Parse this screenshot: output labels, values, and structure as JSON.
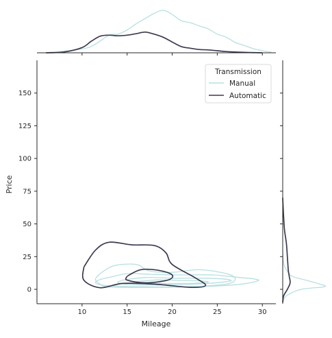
{
  "chart_data": {
    "type": "jointplot-kde",
    "xlabel": "Mileage",
    "ylabel": "Price",
    "xlim": [
      5,
      31.5
    ],
    "ylim": [
      -11,
      175
    ],
    "x_ticks": [
      10,
      15,
      20,
      25,
      30
    ],
    "y_ticks": [
      0,
      25,
      50,
      75,
      100,
      125,
      150
    ],
    "grid": false,
    "legend": {
      "title": "Transmission",
      "placement": "top-right"
    },
    "colors": {
      "Manual": "#b7dfe0",
      "Automatic": "#3a3850"
    },
    "series": [
      {
        "name": "Manual",
        "contours": [
          [
            [
              12,
              12
            ],
            [
              13.5,
              18
            ],
            [
              16,
              19
            ],
            [
              17.5,
              14
            ],
            [
              20,
              13
            ],
            [
              23,
              15
            ],
            [
              26,
              12
            ],
            [
              27,
              8
            ],
            [
              26,
              4
            ],
            [
              22,
              2
            ],
            [
              18,
              1.5
            ],
            [
              13,
              1.8
            ],
            [
              11.8,
              5
            ],
            [
              11.5,
              8
            ],
            [
              12,
              12
            ]
          ],
          [
            [
              13,
              9
            ],
            [
              15,
              12
            ],
            [
              17.5,
              11.5
            ],
            [
              21,
              11
            ],
            [
              24.5,
              11
            ],
            [
              27.5,
              9
            ],
            [
              29,
              8
            ],
            [
              29.5,
              6.5
            ],
            [
              27,
              3.5
            ],
            [
              22,
              2
            ],
            [
              16,
              2
            ],
            [
              12.5,
              3
            ],
            [
              11.5,
              5
            ],
            [
              12,
              7.5
            ],
            [
              13,
              9
            ]
          ],
          [
            [
              14.5,
              7
            ],
            [
              17,
              9
            ],
            [
              20,
              8.5
            ],
            [
              23,
              8.5
            ],
            [
              25.5,
              8
            ],
            [
              26.5,
              6.5
            ],
            [
              24,
              4.5
            ],
            [
              20,
              3.5
            ],
            [
              16,
              3.5
            ],
            [
              14,
              5
            ],
            [
              14.5,
              7
            ]
          ],
          [
            [
              16,
              6
            ],
            [
              18.5,
              7.2
            ],
            [
              21,
              6.8
            ],
            [
              23,
              6.5
            ],
            [
              24,
              5.5
            ],
            [
              22,
              4.5
            ],
            [
              19,
              4.5
            ],
            [
              16.5,
              4.8
            ],
            [
              16,
              6
            ]
          ]
        ],
        "marginal_x": [
          [
            6,
            0
          ],
          [
            7,
            0.005
          ],
          [
            9,
            0.012
          ],
          [
            11,
            0.03
          ],
          [
            13,
            0.085
          ],
          [
            14,
            0.09
          ],
          [
            15,
            0.11
          ],
          [
            16,
            0.14
          ],
          [
            17,
            0.165
          ],
          [
            18,
            0.19
          ],
          [
            19,
            0.205
          ],
          [
            20,
            0.185
          ],
          [
            21,
            0.155
          ],
          [
            22,
            0.145
          ],
          [
            23,
            0.13
          ],
          [
            24,
            0.115
          ],
          [
            25,
            0.09
          ],
          [
            26,
            0.075
          ],
          [
            27,
            0.05
          ],
          [
            28,
            0.035
          ],
          [
            29,
            0.02
          ],
          [
            30,
            0.01
          ],
          [
            31,
            0.003
          ]
        ],
        "marginal_y": [
          [
            -10,
            0
          ],
          [
            -5,
            0.004
          ],
          [
            0,
            0.02
          ],
          [
            2,
            0.045
          ],
          [
            4,
            0.04
          ],
          [
            7,
            0.025
          ],
          [
            10,
            0.01
          ],
          [
            15,
            0.004
          ],
          [
            20,
            0.001
          ],
          [
            30,
            0
          ]
        ]
      },
      {
        "name": "Automatic",
        "contours": [
          [
            [
              10.2,
              17
            ],
            [
              11.5,
              30
            ],
            [
              13,
              36
            ],
            [
              15.5,
              34
            ],
            [
              18,
              33.5
            ],
            [
              19.3,
              28
            ],
            [
              20,
              19
            ],
            [
              22.5,
              9
            ],
            [
              23.7,
              3
            ],
            [
              22,
              1.5
            ],
            [
              18,
              4
            ],
            [
              14.5,
              4.5
            ],
            [
              12,
              1.2
            ],
            [
              10.2,
              7
            ],
            [
              10.2,
              17
            ]
          ],
          [
            [
              15,
              10
            ],
            [
              16.5,
              15
            ],
            [
              18.5,
              14.5
            ],
            [
              20,
              11
            ],
            [
              19.5,
              7
            ],
            [
              17,
              5
            ],
            [
              15,
              7
            ],
            [
              15,
              10
            ]
          ]
        ],
        "marginal_x": [
          [
            6,
            0
          ],
          [
            8,
            0.004
          ],
          [
            10,
            0.025
          ],
          [
            11,
            0.055
          ],
          [
            12,
            0.08
          ],
          [
            13,
            0.085
          ],
          [
            14,
            0.082
          ],
          [
            15,
            0.085
          ],
          [
            16,
            0.092
          ],
          [
            17,
            0.1
          ],
          [
            18,
            0.09
          ],
          [
            19,
            0.075
          ],
          [
            20,
            0.052
          ],
          [
            21,
            0.03
          ],
          [
            22,
            0.022
          ],
          [
            23,
            0.016
          ],
          [
            24,
            0.014
          ],
          [
            25,
            0.01
          ],
          [
            26,
            0.006
          ],
          [
            28,
            0.002
          ],
          [
            30,
            0
          ]
        ],
        "marginal_y": [
          [
            -10,
            0
          ],
          [
            -5,
            0.001
          ],
          [
            0,
            0.005
          ],
          [
            5,
            0.008
          ],
          [
            10,
            0.007
          ],
          [
            15,
            0.006
          ],
          [
            25,
            0.005
          ],
          [
            35,
            0.004
          ],
          [
            45,
            0.002
          ],
          [
            55,
            0.001
          ],
          [
            70,
            0
          ]
        ]
      }
    ]
  }
}
